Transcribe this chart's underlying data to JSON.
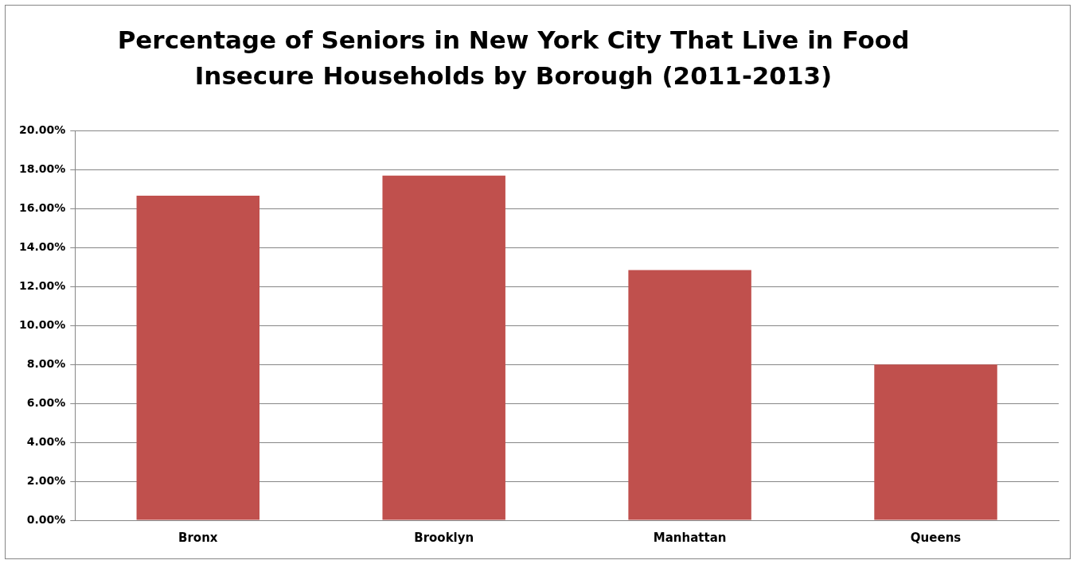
{
  "chart_data": {
    "type": "bar",
    "title": "Percentage of Seniors in New York City That Live in Food Insecure Households by Borough (2011-2013)",
    "categories": [
      "Bronx",
      "Brooklyn",
      "Manhattan",
      "Queens"
    ],
    "values": [
      16.67,
      17.7,
      12.85,
      8.0
    ],
    "color": "#c0504d",
    "ylim": [
      0,
      20
    ],
    "yticks": [
      {
        "value": 0,
        "label": "0.00%"
      },
      {
        "value": 2,
        "label": "2.00%"
      },
      {
        "value": 4,
        "label": "4.00%"
      },
      {
        "value": 6,
        "label": "6.00%"
      },
      {
        "value": 8,
        "label": "8.00%"
      },
      {
        "value": 10,
        "label": "10.00%"
      },
      {
        "value": 12,
        "label": "12.00%"
      },
      {
        "value": 14,
        "label": "14.00%"
      },
      {
        "value": 16,
        "label": "16.00%"
      },
      {
        "value": 18,
        "label": "18.00%"
      },
      {
        "value": 20,
        "label": "20.00%"
      }
    ],
    "grid": "y"
  }
}
